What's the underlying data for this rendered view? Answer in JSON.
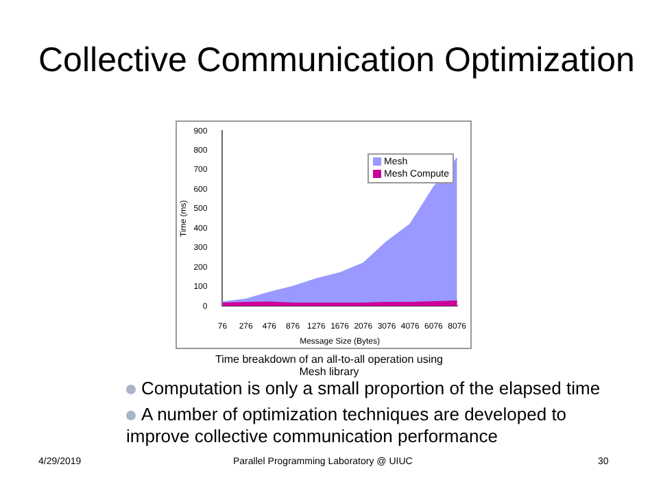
{
  "chart_data": {
    "type": "area",
    "title": "Collective Communication Optimization",
    "xlabel": "Message Size (Bytes)",
    "ylabel": "Time (ms)",
    "categories": [
      "76",
      "276",
      "476",
      "876",
      "1276",
      "1676",
      "2076",
      "3076",
      "4076",
      "6076",
      "8076"
    ],
    "series": [
      {
        "name": "Mesh",
        "color": "#9999ff",
        "values": [
          20,
          35,
          70,
          100,
          140,
          170,
          220,
          330,
          420,
          610,
          760
        ]
      },
      {
        "name": "Mesh Compute",
        "color": "#cc0099",
        "values": [
          15,
          18,
          20,
          15,
          15,
          15,
          15,
          18,
          18,
          22,
          25
        ]
      }
    ],
    "ylim": [
      0,
      900
    ],
    "yticks": [
      0,
      100,
      200,
      300,
      400,
      500,
      600,
      700,
      800,
      900
    ],
    "grid": false,
    "legend": "top right",
    "annotations": [
      "Time breakdown of an all-to-all operation using Mesh library",
      "Computation is only a small proportion of the elapsed time",
      "A number of optimization techniques are developed to improve collective communication performance",
      "4/29/2019",
      "Parallel Programming Laboratory @ UIUC",
      "30"
    ]
  }
}
